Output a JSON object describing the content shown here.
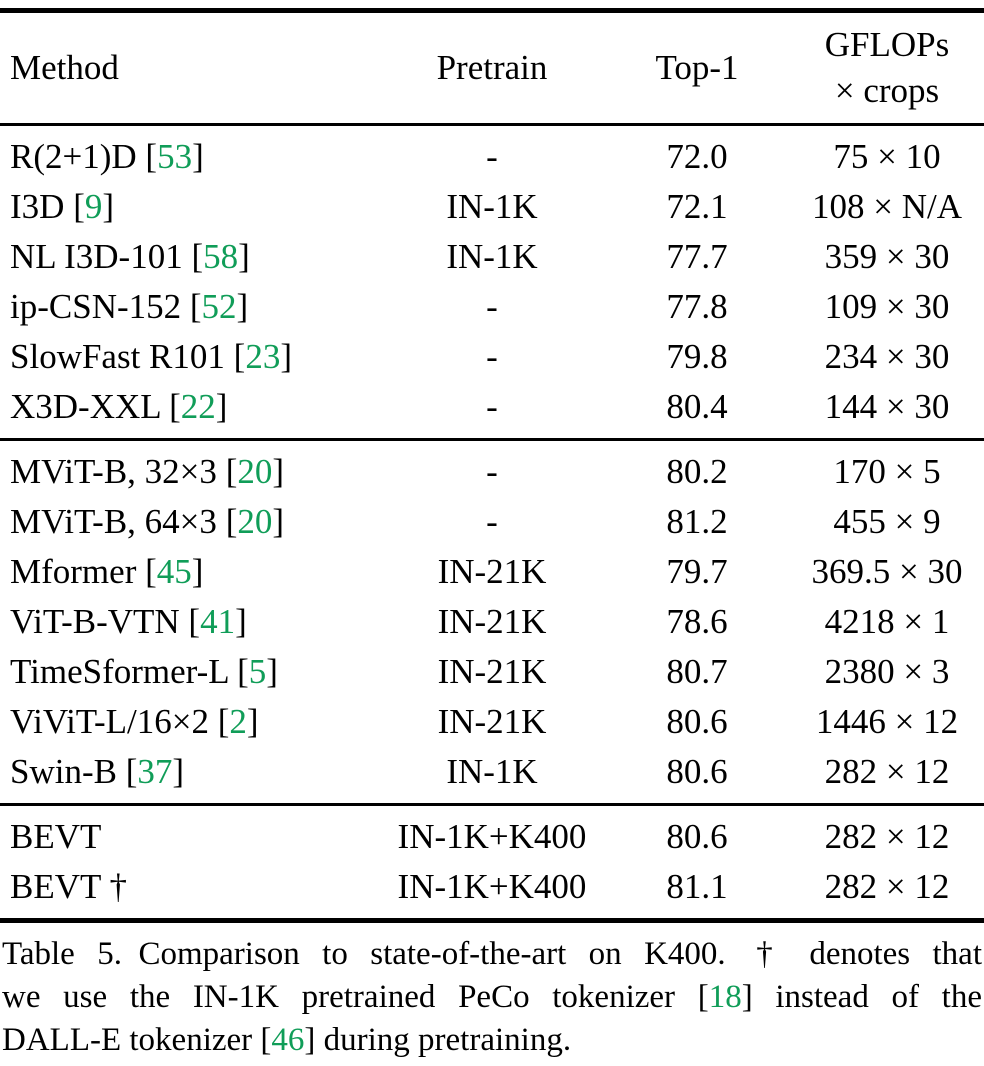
{
  "colors": {
    "citation_green": "#109d58",
    "text_black": "#000000",
    "background": "#ffffff"
  },
  "header": {
    "method": "Method",
    "pretrain": "Pretrain",
    "top1": "Top-1",
    "gflops_line1": "GFLOPs",
    "gflops_line2": "× crops"
  },
  "groups": [
    {
      "rows": [
        {
          "method": "R(2+1)D",
          "cite": "53",
          "pretrain": "-",
          "top1": "72.0",
          "gflops": "75 × 10"
        },
        {
          "method": "I3D",
          "cite": "9",
          "pretrain": "IN-1K",
          "top1": "72.1",
          "gflops": "108 × N/A"
        },
        {
          "method": "NL I3D-101",
          "cite": "58",
          "pretrain": "IN-1K",
          "top1": "77.7",
          "gflops": "359 × 30"
        },
        {
          "method": "ip-CSN-152",
          "cite": "52",
          "pretrain": "-",
          "top1": "77.8",
          "gflops": "109 × 30"
        },
        {
          "method": "SlowFast R101",
          "cite": "23",
          "pretrain": "-",
          "top1": "79.8",
          "gflops": "234 × 30"
        },
        {
          "method": "X3D-XXL",
          "cite": "22",
          "pretrain": "-",
          "top1": "80.4",
          "gflops": "144 × 30"
        }
      ]
    },
    {
      "rows": [
        {
          "method": "MViT-B, 32×3",
          "cite": "20",
          "pretrain": "-",
          "top1": "80.2",
          "gflops": "170 × 5"
        },
        {
          "method": "MViT-B, 64×3",
          "cite": "20",
          "pretrain": "-",
          "top1": "81.2",
          "gflops": "455 × 9"
        },
        {
          "method": "Mformer",
          "cite": "45",
          "pretrain": "IN-21K",
          "top1": "79.7",
          "gflops": "369.5 × 30"
        },
        {
          "method": "ViT-B-VTN",
          "cite": "41",
          "pretrain": "IN-21K",
          "top1": "78.6",
          "gflops": "4218 × 1"
        },
        {
          "method": "TimeSformer-L",
          "cite": "5",
          "pretrain": "IN-21K",
          "top1": "80.7",
          "gflops": "2380 × 3"
        },
        {
          "method": "ViViT-L/16×2",
          "cite": "2",
          "pretrain": "IN-21K",
          "top1": "80.6",
          "gflops": "1446 × 12"
        },
        {
          "method": "Swin-B",
          "cite": "37",
          "pretrain": "IN-1K",
          "top1": "80.6",
          "gflops": "282 × 12"
        }
      ]
    },
    {
      "rows": [
        {
          "method": "BEVT",
          "cite": "",
          "pretrain": "IN-1K+K400",
          "top1": "80.6",
          "gflops": "282 × 12"
        },
        {
          "method": "BEVT †",
          "cite": "",
          "pretrain": "IN-1K+K400",
          "top1": "81.1",
          "gflops": "282 × 12"
        }
      ]
    }
  ],
  "caption": {
    "lines": [
      [
        {
          "t": "Table 5. Comparison to state-of-the-art on K400. † denotes that"
        }
      ],
      [
        {
          "t": "we use the IN-1K pretrained PeCo tokenizer ["
        },
        {
          "cite": "18"
        },
        {
          "t": "] instead of the"
        }
      ],
      [
        {
          "t": "DALL-E tokenizer ["
        },
        {
          "cite": "46"
        },
        {
          "t": "] during pretraining."
        }
      ]
    ]
  }
}
